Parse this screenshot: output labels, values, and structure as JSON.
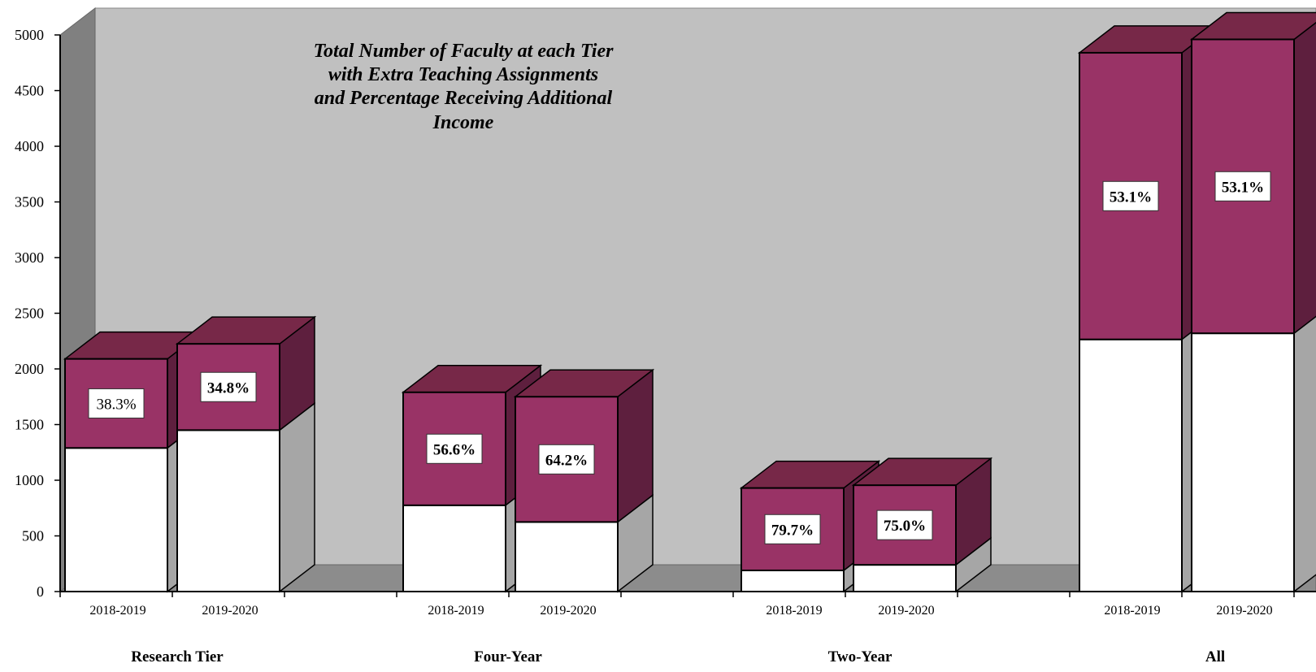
{
  "chart_data": {
    "type": "bar",
    "stacked": true,
    "three_d": true,
    "title_lines": [
      "Total Number of Faculty at each Tier",
      "with Extra Teaching Assignments",
      "and Percentage Receiving Additional",
      "Income"
    ],
    "ylim": [
      0,
      5000
    ],
    "y_ticks": [
      0,
      500,
      1000,
      1500,
      2000,
      2500,
      3000,
      3500,
      4000,
      4500,
      5000
    ],
    "groups": [
      "Research Tier",
      "Four-Year",
      "Two-Year",
      "All"
    ],
    "categories": [
      "2018-2019",
      "2019-2020"
    ],
    "bars": [
      {
        "group": "Research Tier",
        "year": "2018-2019",
        "bottom": 1290,
        "total": 2090,
        "label": "38.3%",
        "label_bold": false
      },
      {
        "group": "Research Tier",
        "year": "2019-2020",
        "bottom": 1450,
        "total": 2225,
        "label": "34.8%",
        "label_bold": true
      },
      {
        "group": "Four-Year",
        "year": "2018-2019",
        "bottom": 775,
        "total": 1790,
        "label": "56.6%",
        "label_bold": true
      },
      {
        "group": "Four-Year",
        "year": "2019-2020",
        "bottom": 625,
        "total": 1750,
        "label": "64.2%",
        "label_bold": true
      },
      {
        "group": "Two-Year",
        "year": "2018-2019",
        "bottom": 190,
        "total": 930,
        "label": "79.7%",
        "label_bold": true
      },
      {
        "group": "Two-Year",
        "year": "2019-2020",
        "bottom": 240,
        "total": 955,
        "label": "75.0%",
        "label_bold": true
      },
      {
        "group": "All",
        "year": "2018-2019",
        "bottom": 2265,
        "total": 4840,
        "label": "53.1%",
        "label_bold": true
      },
      {
        "group": "All",
        "year": "2019-2020",
        "bottom": 2320,
        "total": 4960,
        "label": "53.1%",
        "label_bold": true
      }
    ],
    "colors": {
      "bottom_front": "#ffffff",
      "bottom_side": "#a6a6a6",
      "top_front": "#993366",
      "top_side": "#5e1f3e",
      "top_cap": "#772848",
      "wall": "#c0c0c0",
      "wall_left": "#808080",
      "floor": "#8c8c8c"
    },
    "grid": false,
    "legend": "none"
  }
}
